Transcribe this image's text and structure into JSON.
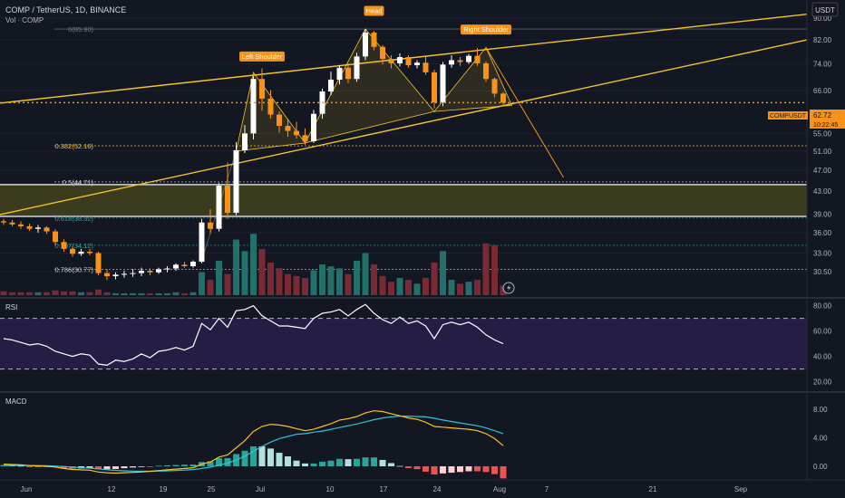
{
  "header": {
    "symbol_line": "COMP / TetherUS, 1D, BINANCE",
    "vol_label": "Vol · COMP",
    "currency": "USDT"
  },
  "price_axis": {
    "ticks": [
      "90.00",
      "82.00",
      "74.00",
      "66.00",
      "55.00",
      "51.00",
      "47.00",
      "43.00",
      "39.00",
      "36.00",
      "33.00",
      "30.50"
    ],
    "tick_values": [
      90,
      82,
      74,
      66,
      55,
      51,
      47,
      43,
      39,
      36,
      33,
      30.5
    ]
  },
  "last_price": {
    "symbol": "COMPUSDT",
    "price": "62.72",
    "countdown": "10:22:45",
    "value": 62.72
  },
  "fib_levels": [
    {
      "label": "0(85.90)",
      "value": 85.9
    },
    {
      "label": "0.382(52.16)",
      "value": 52.16
    },
    {
      "label": "0.5(44.71)",
      "value": 44.71
    },
    {
      "label": "0.618(38.32)",
      "value": 38.32
    },
    {
      "label": "0.707(34.12)",
      "value": 34.12
    },
    {
      "label": "0.786(30.77)",
      "value": 30.77
    }
  ],
  "pattern_labels": {
    "left_shoulder": "Left Shoulder",
    "head": "Head",
    "right_shoulder": "Right Shoulder"
  },
  "rsi": {
    "label": "RSI",
    "ticks": [
      "80.00",
      "60.00",
      "40.00",
      "20.00"
    ],
    "tick_values": [
      80,
      60,
      40,
      20
    ],
    "bands": [
      70,
      30
    ]
  },
  "macd": {
    "label": "MACD",
    "ticks": [
      "8.00",
      "4.00",
      "0.00"
    ],
    "tick_values": [
      8,
      4,
      0
    ]
  },
  "time_axis": {
    "labels": [
      "Jun",
      "12",
      "19",
      "25",
      "Jul",
      "10",
      "17",
      "24",
      "Aug",
      "7",
      "21",
      "Sep"
    ]
  },
  "colors": {
    "up": "#26a69a",
    "down": "#ef5350",
    "candle_up": "#ffffff",
    "candle_down": "#f7931a",
    "pattern": "#f7c325",
    "rsi_bg": "#2a1f4a"
  },
  "chart_data": {
    "type": "candlestick",
    "ohlc": [
      [
        37.8,
        38.2,
        37.2,
        37.6
      ],
      [
        37.6,
        38.0,
        37.0,
        37.3
      ],
      [
        37.3,
        37.8,
        36.6,
        37.0
      ],
      [
        37.0,
        37.4,
        36.3,
        36.6
      ],
      [
        36.6,
        37.2,
        36.0,
        36.8
      ],
      [
        36.8,
        37.0,
        35.8,
        36.2
      ],
      [
        36.2,
        36.5,
        34.2,
        34.6
      ],
      [
        34.6,
        35.0,
        33.2,
        33.6
      ],
      [
        33.6,
        34.0,
        32.5,
        32.9
      ],
      [
        32.9,
        33.6,
        32.6,
        33.2
      ],
      [
        33.2,
        33.6,
        32.7,
        33.0
      ],
      [
        33.0,
        33.2,
        30.0,
        30.3
      ],
      [
        30.3,
        30.8,
        29.4,
        29.9
      ],
      [
        29.9,
        30.4,
        29.5,
        30.1
      ],
      [
        30.1,
        30.6,
        29.7,
        30.2
      ],
      [
        30.2,
        30.8,
        29.8,
        30.3
      ],
      [
        30.3,
        31.0,
        29.9,
        30.6
      ],
      [
        30.6,
        30.9,
        30.0,
        30.4
      ],
      [
        30.4,
        31.0,
        30.2,
        30.8
      ],
      [
        30.8,
        31.2,
        30.4,
        30.9
      ],
      [
        30.9,
        31.6,
        30.6,
        31.4
      ],
      [
        31.4,
        31.8,
        31.0,
        31.2
      ],
      [
        31.2,
        32.0,
        31.0,
        31.8
      ],
      [
        31.8,
        38.2,
        31.6,
        37.6
      ],
      [
        37.6,
        39.8,
        35.8,
        36.6
      ],
      [
        36.6,
        44.5,
        36.2,
        44.0
      ],
      [
        44.0,
        48.6,
        38.2,
        39.2
      ],
      [
        39.2,
        53.0,
        38.8,
        51.2
      ],
      [
        51.2,
        57.0,
        50.6,
        55.0
      ],
      [
        55.0,
        70.2,
        53.6,
        69.4
      ],
      [
        69.4,
        72.6,
        60.6,
        63.8
      ],
      [
        63.8,
        66.2,
        58.6,
        59.6
      ],
      [
        59.6,
        60.4,
        55.2,
        56.8
      ],
      [
        56.8,
        58.6,
        54.2,
        55.6
      ],
      [
        55.6,
        57.8,
        53.8,
        54.6
      ],
      [
        54.6,
        56.2,
        52.4,
        53.2
      ],
      [
        53.2,
        60.8,
        52.8,
        59.8
      ],
      [
        59.8,
        66.6,
        58.6,
        65.8
      ],
      [
        65.8,
        71.6,
        64.8,
        69.2
      ],
      [
        69.2,
        73.6,
        67.8,
        72.8
      ],
      [
        72.8,
        74.2,
        68.2,
        69.4
      ],
      [
        69.4,
        77.6,
        68.6,
        76.4
      ],
      [
        76.4,
        85.9,
        75.2,
        84.6
      ],
      [
        84.6,
        85.2,
        78.4,
        79.6
      ],
      [
        79.6,
        80.2,
        73.8,
        75.6
      ],
      [
        75.6,
        76.8,
        72.6,
        74.2
      ],
      [
        74.2,
        77.4,
        73.2,
        76.2
      ],
      [
        76.2,
        76.8,
        72.8,
        73.6
      ],
      [
        73.6,
        75.2,
        72.6,
        74.4
      ],
      [
        74.4,
        76.2,
        70.6,
        71.4
      ],
      [
        71.4,
        72.2,
        61.2,
        62.8
      ],
      [
        62.8,
        74.6,
        61.8,
        73.8
      ],
      [
        73.8,
        76.8,
        72.8,
        75.2
      ],
      [
        75.2,
        76.2,
        73.4,
        74.6
      ],
      [
        74.6,
        77.2,
        74.0,
        76.6
      ],
      [
        76.6,
        79.2,
        73.4,
        74.2
      ],
      [
        74.2,
        74.8,
        68.6,
        69.4
      ],
      [
        69.4,
        69.8,
        64.2,
        65.2
      ],
      [
        65.2,
        65.6,
        62.2,
        62.72
      ]
    ],
    "volume": [
      [
        0.4,
        "d"
      ],
      [
        0.3,
        "d"
      ],
      [
        0.3,
        "d"
      ],
      [
        0.3,
        "d"
      ],
      [
        0.3,
        "u"
      ],
      [
        0.3,
        "d"
      ],
      [
        0.5,
        "d"
      ],
      [
        0.4,
        "d"
      ],
      [
        0.4,
        "d"
      ],
      [
        0.3,
        "u"
      ],
      [
        0.3,
        "d"
      ],
      [
        0.6,
        "d"
      ],
      [
        0.3,
        "d"
      ],
      [
        0.2,
        "u"
      ],
      [
        0.2,
        "u"
      ],
      [
        0.2,
        "u"
      ],
      [
        0.2,
        "u"
      ],
      [
        0.2,
        "d"
      ],
      [
        0.2,
        "u"
      ],
      [
        0.2,
        "u"
      ],
      [
        0.3,
        "u"
      ],
      [
        0.2,
        "d"
      ],
      [
        0.3,
        "u"
      ],
      [
        2.4,
        "u"
      ],
      [
        1.6,
        "d"
      ],
      [
        3.6,
        "u"
      ],
      [
        2.2,
        "d"
      ],
      [
        5.8,
        "u"
      ],
      [
        4.6,
        "u"
      ],
      [
        6.4,
        "u"
      ],
      [
        4.8,
        "d"
      ],
      [
        3.4,
        "d"
      ],
      [
        2.8,
        "d"
      ],
      [
        2.2,
        "d"
      ],
      [
        2.0,
        "d"
      ],
      [
        1.8,
        "d"
      ],
      [
        2.6,
        "u"
      ],
      [
        3.2,
        "u"
      ],
      [
        3.0,
        "u"
      ],
      [
        2.8,
        "u"
      ],
      [
        2.2,
        "d"
      ],
      [
        3.6,
        "u"
      ],
      [
        4.4,
        "u"
      ],
      [
        3.2,
        "d"
      ],
      [
        2.0,
        "d"
      ],
      [
        1.4,
        "d"
      ],
      [
        1.8,
        "u"
      ],
      [
        1.6,
        "d"
      ],
      [
        1.2,
        "u"
      ],
      [
        1.8,
        "d"
      ],
      [
        3.4,
        "d"
      ],
      [
        4.6,
        "u"
      ],
      [
        1.6,
        "u"
      ],
      [
        1.2,
        "d"
      ],
      [
        1.4,
        "u"
      ],
      [
        1.6,
        "d"
      ],
      [
        5.4,
        "d"
      ],
      [
        5.2,
        "d"
      ],
      [
        1.0,
        "d"
      ]
    ],
    "rsi": [
      54,
      53,
      51,
      49,
      50,
      48,
      44,
      42,
      40,
      42,
      41,
      34,
      33,
      37,
      36,
      38,
      42,
      39,
      44,
      45,
      47,
      45,
      48,
      66,
      61,
      70,
      63,
      76,
      77,
      80,
      72,
      68,
      64,
      64,
      63,
      62,
      70,
      74,
      75,
      77,
      72,
      77,
      81,
      74,
      69,
      66,
      71,
      66,
      68,
      64,
      54,
      65,
      67,
      65,
      67,
      63,
      57,
      53,
      50
    ],
    "macd_line": [
      0.3,
      0.25,
      0.2,
      0.1,
      0.05,
      0,
      -0.1,
      -0.3,
      -0.45,
      -0.5,
      -0.55,
      -0.8,
      -0.9,
      -0.95,
      -0.9,
      -0.85,
      -0.8,
      -0.7,
      -0.6,
      -0.5,
      -0.4,
      -0.3,
      -0.2,
      0.3,
      0.6,
      1.3,
      1.6,
      2.6,
      3.6,
      4.9,
      5.6,
      5.9,
      5.8,
      5.6,
      5.3,
      5.0,
      5.2,
      5.6,
      6.0,
      6.5,
      6.7,
      7.0,
      7.5,
      7.8,
      7.7,
      7.4,
      7.1,
      6.8,
      6.6,
      6.2,
      5.6,
      5.5,
      5.4,
      5.3,
      5.2,
      5.0,
      4.6,
      3.9,
      2.9
    ],
    "signal_line": [
      0.1,
      0.12,
      0.13,
      0.12,
      0.1,
      0.08,
      0.04,
      -0.03,
      -0.12,
      -0.2,
      -0.26,
      -0.37,
      -0.48,
      -0.57,
      -0.63,
      -0.68,
      -0.7,
      -0.7,
      -0.68,
      -0.64,
      -0.59,
      -0.53,
      -0.46,
      -0.3,
      -0.12,
      0.16,
      0.44,
      0.88,
      1.42,
      2.1,
      2.8,
      3.4,
      3.9,
      4.2,
      4.5,
      4.6,
      4.8,
      4.95,
      5.2,
      5.45,
      5.7,
      5.95,
      6.25,
      6.55,
      6.8,
      6.95,
      7.05,
      7.05,
      7.0,
      6.95,
      6.75,
      6.5,
      6.3,
      6.1,
      5.9,
      5.7,
      5.4,
      5.0,
      4.6
    ],
    "ylim": [
      28,
      95
    ],
    "rsi_ylim": [
      14,
      84
    ],
    "macd_ylim": [
      -1.4,
      9.8
    ]
  }
}
